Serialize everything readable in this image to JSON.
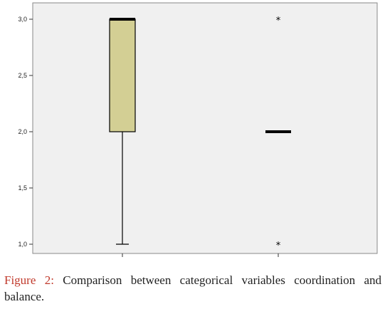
{
  "chart_data": {
    "type": "box",
    "title": "",
    "xlabel": "",
    "ylabel": "",
    "ylim": [
      0.9,
      3.1
    ],
    "yticks": [
      "1,0",
      "1,5",
      "2,0",
      "2,5",
      "3,0"
    ],
    "ytick_values": [
      1.0,
      1.5,
      2.0,
      2.5,
      3.0
    ],
    "grid": false,
    "plot_background": "#f0f0f0",
    "box_fill": "#d3cf94",
    "series": [
      {
        "min": 1.0,
        "q1": 2.0,
        "median": 3.0,
        "q3": 3.0,
        "max": 3.0,
        "outliers": []
      },
      {
        "min": 2.0,
        "q1": 2.0,
        "median": 2.0,
        "q3": 2.0,
        "max": 2.0,
        "outliers": [
          3.0,
          1.0
        ]
      }
    ]
  },
  "caption": {
    "label": "Figure 2:",
    "text": " Comparison between categorical variables coordination and balance."
  }
}
